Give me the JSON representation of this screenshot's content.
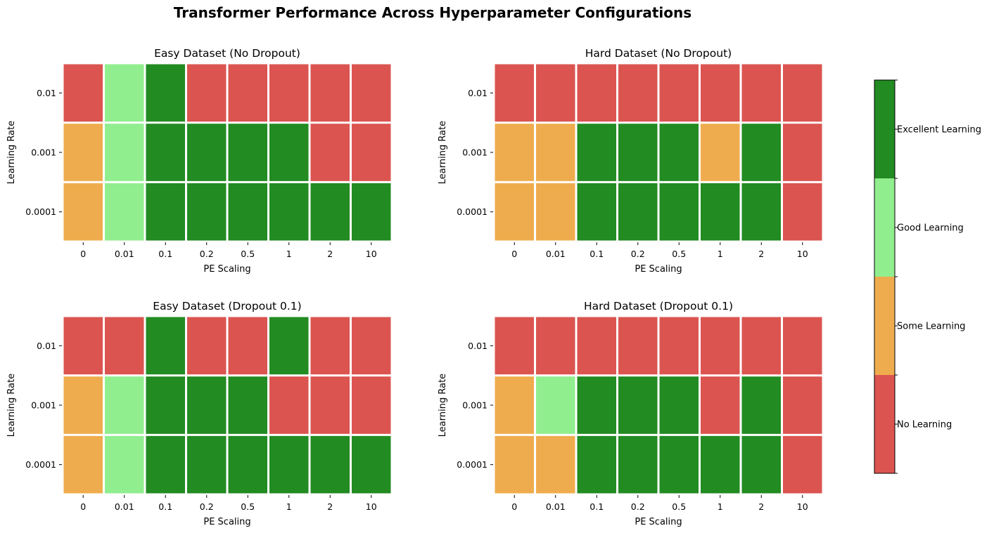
{
  "title": "Transformer Performance Across Hyperparameter Configurations",
  "colors": {
    "No Learning": "#db5450",
    "Some Learning": "#efac4e",
    "Good Learning": "#90ee8e",
    "Excellent Learning": "#228b22"
  },
  "chart_data": [
    {
      "type": "heatmap",
      "title": "Easy Dataset (No Dropout)",
      "xlabel": "PE Scaling",
      "ylabel": "Learning Rate",
      "x_categories": [
        "0",
        "0.01",
        "0.1",
        "0.2",
        "0.5",
        "1",
        "2",
        "10"
      ],
      "y_categories": [
        "0.01",
        "0.001",
        "0.0001"
      ],
      "values": [
        [
          0,
          2,
          3,
          0,
          0,
          0,
          0,
          0
        ],
        [
          1,
          2,
          3,
          3,
          3,
          3,
          0,
          0
        ],
        [
          1,
          2,
          3,
          3,
          3,
          3,
          3,
          3
        ]
      ]
    },
    {
      "type": "heatmap",
      "title": "Hard Dataset (No Dropout)",
      "xlabel": "PE Scaling",
      "ylabel": "Learning Rate",
      "x_categories": [
        "0",
        "0.01",
        "0.1",
        "0.2",
        "0.5",
        "1",
        "2",
        "10"
      ],
      "y_categories": [
        "0.01",
        "0.001",
        "0.0001"
      ],
      "values": [
        [
          0,
          0,
          0,
          0,
          0,
          0,
          0,
          0
        ],
        [
          1,
          1,
          3,
          3,
          3,
          1,
          3,
          0
        ],
        [
          1,
          1,
          3,
          3,
          3,
          3,
          3,
          0
        ]
      ]
    },
    {
      "type": "heatmap",
      "title": "Easy Dataset (Dropout 0.1)",
      "xlabel": "PE Scaling",
      "ylabel": "Learning Rate",
      "x_categories": [
        "0",
        "0.01",
        "0.1",
        "0.2",
        "0.5",
        "1",
        "2",
        "10"
      ],
      "y_categories": [
        "0.01",
        "0.001",
        "0.0001"
      ],
      "values": [
        [
          0,
          0,
          3,
          0,
          0,
          3,
          0,
          0
        ],
        [
          1,
          2,
          3,
          3,
          3,
          0,
          0,
          0
        ],
        [
          1,
          2,
          3,
          3,
          3,
          3,
          3,
          3
        ]
      ]
    },
    {
      "type": "heatmap",
      "title": "Hard Dataset (Dropout 0.1)",
      "xlabel": "PE Scaling",
      "ylabel": "Learning Rate",
      "x_categories": [
        "0",
        "0.01",
        "0.1",
        "0.2",
        "0.5",
        "1",
        "2",
        "10"
      ],
      "y_categories": [
        "0.01",
        "0.001",
        "0.0001"
      ],
      "values": [
        [
          0,
          0,
          0,
          0,
          0,
          0,
          0,
          0
        ],
        [
          1,
          2,
          3,
          3,
          3,
          0,
          3,
          0
        ],
        [
          1,
          1,
          3,
          3,
          3,
          3,
          3,
          0
        ]
      ]
    }
  ],
  "colorbar": {
    "levels": [
      "No Learning",
      "Some Learning",
      "Good Learning",
      "Excellent Learning"
    ]
  }
}
